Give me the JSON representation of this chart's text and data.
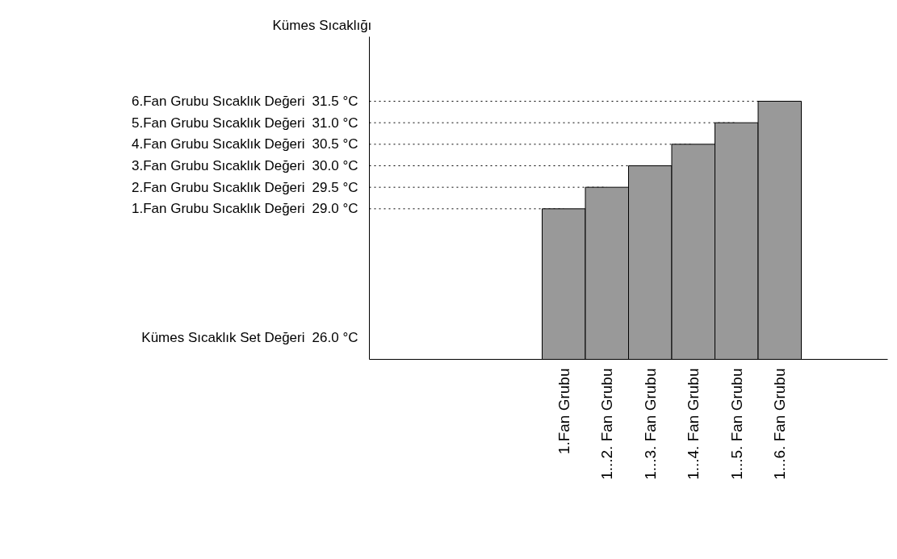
{
  "chart_data": {
    "type": "bar",
    "ylabel": "Kümes Sıcaklığı",
    "categories": [
      null,
      null,
      null,
      null,
      "1.Fan Grubu",
      "1...2. Fan Grubu",
      "1...3. Fan Grubu",
      "1...4. Fan Grubu",
      "1...5. Fan Grubu",
      "1...6. Fan Grubu",
      null,
      null
    ],
    "series": [
      {
        "color": "#999999",
        "values": [
          null,
          null,
          null,
          null,
          29.0,
          29.5,
          30.0,
          30.5,
          31.0,
          31.5,
          null,
          null
        ]
      }
    ],
    "ylim": [
      25.5,
      33.0
    ],
    "yticks": [
      {
        "value": 26.0,
        "label": "26.0 °C"
      },
      {
        "value": 29.0,
        "label": "29.0 °C"
      },
      {
        "value": 29.5,
        "label": "29.5 °C"
      },
      {
        "value": 30.0,
        "label": "30.0 °C"
      },
      {
        "value": 30.5,
        "label": "30.5 °C"
      },
      {
        "value": 31.0,
        "label": "31.0 °C"
      },
      {
        "value": 31.5,
        "label": "31.5 °C"
      }
    ],
    "annotations": [
      "Kümes Sıcaklık Set Değeri",
      "1.Fan Grubu Sıcaklık Değeri",
      "2.Fan Grubu Sıcaklık Değeri",
      "3.Fan Grubu Sıcaklık Değeri",
      "4.Fan Grubu Sıcaklık Değeri",
      "5.Fan Grubu Sıcaklık Değeri",
      "6.Fan Grubu Sıcaklık Değeri"
    ],
    "ref_lines": [
      {
        "axis": "y",
        "value": 29.0,
        "line_style": "dotted"
      },
      {
        "axis": "y",
        "value": 29.5,
        "line_style": "dotted"
      },
      {
        "axis": "y",
        "value": 30.0,
        "line_style": "dotted"
      },
      {
        "axis": "y",
        "value": 30.5,
        "line_style": "dotted"
      },
      {
        "axis": "y",
        "value": 31.0,
        "line_style": "dotted"
      },
      {
        "axis": "y",
        "value": 31.5,
        "line_style": "dotted"
      }
    ],
    "grid": false
  }
}
